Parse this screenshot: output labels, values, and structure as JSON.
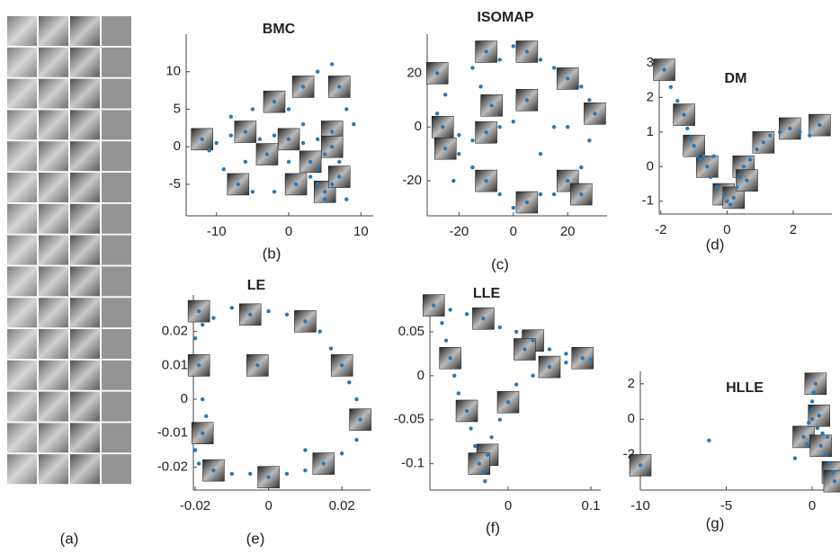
{
  "panel_a": {
    "caption": "(a)"
  },
  "chart_data": [
    {
      "type": "scatter",
      "title": "BMC",
      "caption": "(b)",
      "color": "#2878b8",
      "xlim": [
        -14.2,
        11.7
      ],
      "ylim": [
        -9.2,
        15
      ],
      "xticks": [
        -10,
        0,
        10
      ],
      "yticks": [
        -5,
        0,
        5,
        10
      ],
      "x": [
        -12,
        -10,
        -8,
        -6,
        -4,
        -2,
        0,
        2,
        4,
        6,
        -11,
        -9,
        -7,
        -5,
        -2,
        1,
        3,
        4,
        5,
        5,
        6,
        7,
        8,
        4,
        3,
        2,
        0,
        -2,
        -5,
        -8,
        2,
        4,
        6,
        7,
        8,
        9,
        6,
        5,
        7,
        -3,
        0,
        -6
      ],
      "values": [
        1,
        0.5,
        1.5,
        2,
        1,
        1.5,
        1,
        0.5,
        1,
        2,
        -0.5,
        -3,
        -5,
        -6,
        -6,
        -5,
        -4,
        -5,
        -6,
        -7,
        -5,
        -4,
        -7,
        -3,
        -2,
        3,
        5,
        6,
        5,
        4,
        8,
        10,
        11,
        8,
        5,
        3,
        0,
        -1,
        -2,
        -1,
        -2,
        -2
      ]
    },
    {
      "type": "scatter",
      "title": "ISOMAP",
      "caption": "(c)",
      "color": "#2878b8",
      "xlim": [
        -31.7,
        34.5
      ],
      "ylim": [
        -33,
        34.5
      ],
      "xticks": [
        -20,
        0,
        20
      ],
      "yticks": [
        -20,
        0,
        20
      ],
      "x": [
        -28,
        -25,
        -28,
        -26,
        -20,
        -15,
        -10,
        -5,
        0,
        -8,
        -12,
        -15,
        -10,
        -5,
        0,
        5,
        10,
        15,
        20,
        25,
        28,
        30,
        28,
        25,
        20,
        15,
        10,
        5,
        0,
        -5,
        -10,
        -15,
        -20,
        -25,
        10,
        15,
        5,
        -22,
        20,
        25
      ],
      "values": [
        20,
        12,
        5,
        0,
        -3,
        -5,
        -2,
        0,
        2,
        8,
        15,
        22,
        28,
        25,
        30,
        28,
        25,
        22,
        18,
        15,
        10,
        5,
        -5,
        -15,
        -20,
        -25,
        -25,
        -28,
        -30,
        -25,
        -20,
        -15,
        -10,
        -8,
        -10,
        0,
        10,
        -20,
        0,
        -25
      ]
    },
    {
      "type": "scatter",
      "title": "DM",
      "caption": "(d)",
      "color": "#2878b8",
      "xlim": [
        -2.05,
        3.17
      ],
      "ylim": [
        -1.37,
        3.1
      ],
      "xticks": [
        -2,
        0,
        2
      ],
      "yticks": [
        -1,
        0,
        1,
        2,
        3
      ],
      "x": [
        -1.9,
        -1.7,
        -1.5,
        -1.3,
        -1.2,
        -1.1,
        -1.0,
        -0.9,
        -0.8,
        -0.6,
        -0.5,
        -0.3,
        -0.1,
        0,
        0.1,
        0.2,
        0.3,
        0.4,
        0.5,
        0.7,
        0.9,
        1.1,
        1.3,
        1.6,
        1.9,
        2.2,
        2.5,
        2.8,
        -0.7,
        -0.4,
        0.6
      ],
      "values": [
        2.8,
        2.3,
        1.9,
        1.5,
        1.1,
        0.8,
        0.6,
        0.3,
        0.2,
        0,
        -0.3,
        -0.6,
        -0.8,
        -1.0,
        -1.1,
        -0.9,
        -0.6,
        -0.3,
        0,
        0.2,
        0.5,
        0.7,
        0.9,
        1.0,
        1.1,
        1.0,
        0.9,
        1.2,
        0.3,
        0.3,
        -0.4
      ]
    },
    {
      "type": "scatter",
      "title": "LE",
      "caption": "(e)",
      "color": "#2878b8",
      "xlim": [
        -0.0205,
        0.0278
      ],
      "ylim": [
        -0.0268,
        0.0308
      ],
      "xticks": [
        -0.02,
        0,
        0.02
      ],
      "yticks": [
        -0.02,
        -0.01,
        0,
        0.01,
        0.02
      ],
      "x": [
        -0.019,
        -0.015,
        -0.01,
        -0.005,
        0,
        0.005,
        0.01,
        0.014,
        0.017,
        0.02,
        0.022,
        0.024,
        0.025,
        0.024,
        0.02,
        0.015,
        0.01,
        0.005,
        0,
        -0.005,
        -0.01,
        -0.015,
        -0.019,
        -0.02,
        -0.018,
        -0.017,
        -0.018,
        -0.019,
        -0.02,
        -0.018,
        -0.003,
        0.01
      ],
      "values": [
        0.026,
        0.024,
        0.027,
        0.025,
        0.026,
        0.025,
        0.023,
        0.02,
        0.015,
        0.01,
        0.005,
        0,
        -0.006,
        -0.012,
        -0.016,
        -0.019,
        -0.021,
        -0.022,
        -0.023,
        -0.022,
        -0.022,
        -0.021,
        -0.019,
        -0.015,
        -0.01,
        -0.005,
        0,
        0.01,
        0.018,
        0.022,
        0.01,
        -0.015
      ]
    },
    {
      "type": "scatter",
      "title": "LLE",
      "caption": "(f)",
      "color": "#2878b8",
      "xlim": [
        -0.0946,
        0.112
      ],
      "ylim": [
        -0.13,
        0.0847
      ],
      "xticks": [
        0,
        0.1
      ],
      "yticks": [
        -0.1,
        -0.05,
        0,
        0.05
      ],
      "x": [
        -0.09,
        -0.07,
        -0.05,
        -0.03,
        -0.01,
        0.01,
        0.03,
        0.05,
        0.07,
        0.09,
        0.1,
        0.07,
        0.05,
        0.03,
        0.01,
        0,
        -0.01,
        -0.02,
        -0.025,
        -0.03,
        -0.028,
        -0.035,
        -0.04,
        -0.045,
        -0.05,
        -0.06,
        -0.065,
        -0.07,
        -0.075,
        -0.08,
        0.02
      ],
      "values": [
        0.08,
        0.075,
        0.07,
        0.065,
        0.055,
        0.05,
        0.04,
        0.03,
        0.025,
        0.02,
        0.018,
        0.015,
        0.01,
        0,
        -0.01,
        -0.03,
        -0.05,
        -0.07,
        -0.09,
        -0.11,
        -0.12,
        -0.1,
        -0.08,
        -0.06,
        -0.04,
        -0.02,
        0,
        0.02,
        0.04,
        0.06,
        0.03
      ]
    },
    {
      "type": "scatter",
      "title": "HLLE",
      "caption": "(g)",
      "color": "#2878b8",
      "xlim": [
        -10,
        1.41
      ],
      "ylim": [
        -4.0,
        2.7
      ],
      "xticks": [
        -10,
        -5,
        0
      ],
      "yticks": [
        -2,
        0,
        2
      ],
      "x": [
        -10,
        -6,
        -1,
        -0.5,
        0,
        0,
        0.2,
        0,
        0.3,
        0.5,
        0.8,
        1,
        1.2,
        -0.2,
        0.1,
        0.4,
        -0.3,
        0.6,
        1.3,
        0.9
      ],
      "values": [
        -2.6,
        -1.2,
        -2.2,
        -1,
        0,
        1,
        2,
        0.5,
        -0.5,
        -1.5,
        -2,
        -2.5,
        -3,
        -0.2,
        1.5,
        0.2,
        -1.4,
        -0.8,
        -3.5,
        -1
      ]
    }
  ]
}
